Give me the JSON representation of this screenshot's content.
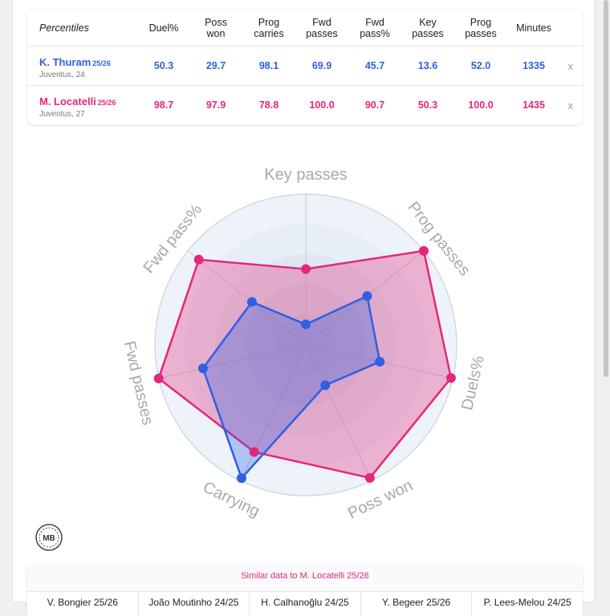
{
  "table": {
    "header_lead": "Percentiles",
    "columns": [
      "Duel%",
      "Poss\nwon",
      "Prog\ncarries",
      "Fwd\npasses",
      "Fwd\npass%",
      "Key\npasses",
      "Prog\npasses",
      "Minutes"
    ],
    "remove_label": "x",
    "players": [
      {
        "name": "K. Thuram",
        "season": "25/26",
        "club": "Juventus, 24",
        "values": [
          "50.3",
          "29.7",
          "98.1",
          "69.9",
          "45.7",
          "13.6",
          "52.0",
          "1335"
        ]
      },
      {
        "name": "M. Locatelli",
        "season": "25/26",
        "club": "Juventus, 27",
        "values": [
          "98.7",
          "97.9",
          "78.8",
          "100.0",
          "90.7",
          "50.3",
          "100.0",
          "1435"
        ]
      }
    ]
  },
  "chart_data": {
    "type": "radar",
    "axes": [
      "Key passes",
      "Prog passes",
      "Duels%",
      "Poss won",
      "Carrying",
      "Fwd passes",
      "Fwd pass%"
    ],
    "range": [
      0,
      100
    ],
    "series": [
      {
        "name": "M. Locatelli 25/26",
        "color": "#e3277a",
        "values": [
          50.3,
          100.0,
          98.7,
          97.9,
          78.8,
          100.0,
          90.7
        ]
      },
      {
        "name": "K. Thuram 25/26",
        "color": "#2f5fe3",
        "values": [
          13.6,
          52.0,
          50.3,
          29.7,
          98.1,
          69.9,
          45.7
        ]
      }
    ]
  },
  "logo_text": "MB",
  "similar": {
    "title": "Similar data to M. Locatelli 25/26",
    "items": [
      "V. Bongier 25/26",
      "João Moutinho 24/25",
      "H. Calhanoğlu 24/25",
      "Y. Begeer 25/26",
      "P. Lees-Melou 24/25"
    ]
  },
  "colors": {
    "thuram": "#2f5fe3",
    "locatelli": "#e3277a"
  }
}
